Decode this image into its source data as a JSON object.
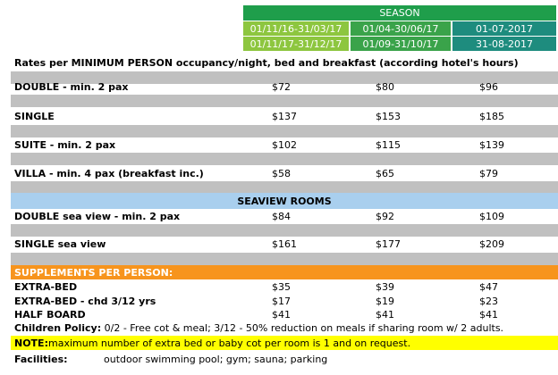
{
  "season": {
    "title": "SEASON",
    "col1": [
      "01/11/16-31/03/17",
      "01/11/17-31/12/17"
    ],
    "col2": [
      "01/04-30/06/17",
      "01/09-31/10/17"
    ],
    "col3": [
      "01-07-2017",
      "31-08-2017"
    ]
  },
  "intro": "Rates per MINIMUM PERSON occupancy/night, bed and breakfast (according hotel's hours)",
  "rooms": [
    {
      "label": "DOUBLE  - min. 2 pax",
      "v": [
        "$72",
        "$80",
        "$96"
      ]
    },
    {
      "label": "SINGLE",
      "v": [
        "$137",
        "$153",
        "$185"
      ]
    },
    {
      "label": "SUITE  - min. 2 pax",
      "v": [
        "$102",
        "$115",
        "$139"
      ]
    },
    {
      "label": "VILLA - min. 4 pax (breakfast inc.)",
      "v": [
        "$58",
        "$65",
        "$79"
      ]
    }
  ],
  "seaview_title": "SEAVIEW ROOMS",
  "seaview": [
    {
      "label": "DOUBLE sea view  - min. 2 pax",
      "v": [
        "$84",
        "$92",
        "$109"
      ]
    },
    {
      "label": "SINGLE sea view",
      "v": [
        "$161",
        "$177",
        "$209"
      ]
    }
  ],
  "supplements_title": "SUPPLEMENTS PER PERSON:",
  "supplements": [
    {
      "label": "EXTRA-BED",
      "v": [
        "$35",
        "$39",
        "$47"
      ]
    },
    {
      "label": "EXTRA-BED - chd 3/12 yrs",
      "v": [
        "$17",
        "$19",
        "$23"
      ]
    },
    {
      "label": "HALF BOARD",
      "v": [
        "$41",
        "$41",
        "$41"
      ]
    }
  ],
  "children_label": "Children Policy:",
  "children_text": " 0/2 - Free cot & meal; 3/12 - 50% reduction on meals if sharing room w/ 2 adults.",
  "note_label": "NOTE:",
  "note_text": " maximum number of extra bed or baby cot per room is 1 and on request.",
  "facilities_label": "Facilities:",
  "facilities_text": "outdoor swimming pool; gym; sauna; parking"
}
